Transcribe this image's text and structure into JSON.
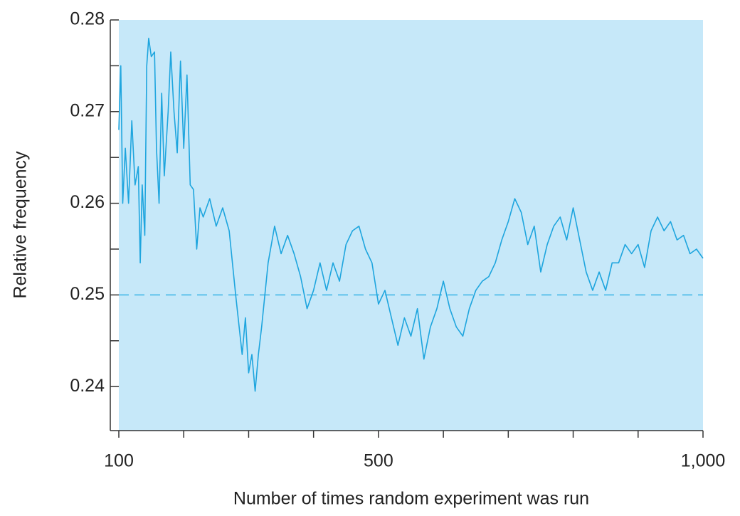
{
  "chart_data": {
    "type": "line",
    "xlabel": "Number of times random experiment was run",
    "ylabel": "Relative frequency",
    "x": [
      100,
      103,
      106,
      110,
      115,
      120,
      125,
      130,
      133,
      136,
      140,
      143,
      146,
      150,
      155,
      158,
      162,
      166,
      170,
      176,
      180,
      185,
      190,
      195,
      200,
      205,
      210,
      215,
      220,
      225,
      230,
      240,
      250,
      260,
      270,
      280,
      290,
      295,
      300,
      305,
      310,
      315,
      320,
      325,
      330,
      340,
      350,
      360,
      370,
      380,
      390,
      400,
      410,
      420,
      430,
      440,
      450,
      460,
      470,
      480,
      490,
      500,
      510,
      520,
      530,
      540,
      550,
      560,
      570,
      580,
      590,
      600,
      610,
      620,
      630,
      640,
      650,
      660,
      670,
      680,
      690,
      700,
      710,
      720,
      730,
      740,
      750,
      760,
      770,
      780,
      790,
      800,
      810,
      820,
      830,
      840,
      850,
      860,
      870,
      880,
      890,
      900,
      910,
      920,
      930,
      940,
      950,
      960,
      970,
      980,
      990,
      1000
    ],
    "series": [
      {
        "color": "#1ea5de",
        "values": [
          0.268,
          0.275,
          0.26,
          0.266,
          0.26,
          0.269,
          0.262,
          0.264,
          0.2535,
          0.262,
          0.2565,
          0.275,
          0.278,
          0.276,
          0.2765,
          0.266,
          0.26,
          0.272,
          0.263,
          0.27,
          0.2765,
          0.27,
          0.2655,
          0.2755,
          0.266,
          0.274,
          0.262,
          0.2615,
          0.255,
          0.2595,
          0.2585,
          0.2605,
          0.2575,
          0.2595,
          0.257,
          0.25,
          0.2435,
          0.2475,
          0.2415,
          0.2435,
          0.2395,
          0.2435,
          0.2465,
          0.25,
          0.2535,
          0.2575,
          0.2545,
          0.2565,
          0.2545,
          0.252,
          0.2485,
          0.2505,
          0.2535,
          0.2505,
          0.2535,
          0.2515,
          0.2555,
          0.257,
          0.2575,
          0.255,
          0.2535,
          0.249,
          0.2505,
          0.2475,
          0.2445,
          0.2475,
          0.2455,
          0.2485,
          0.243,
          0.2465,
          0.2485,
          0.2515,
          0.2485,
          0.2465,
          0.2455,
          0.2485,
          0.2505,
          0.2515,
          0.252,
          0.2535,
          0.256,
          0.258,
          0.2605,
          0.259,
          0.2555,
          0.2575,
          0.2525,
          0.2555,
          0.2575,
          0.2585,
          0.256,
          0.2595,
          0.256,
          0.2525,
          0.2505,
          0.2525,
          0.2505,
          0.2535,
          0.2535,
          0.2555,
          0.2545,
          0.2555,
          0.253,
          0.257,
          0.2585,
          0.257,
          0.258,
          0.256,
          0.2565,
          0.2545,
          0.255,
          0.254
        ]
      }
    ],
    "xlim": [
      100,
      1000
    ],
    "xticks": [
      100,
      500,
      {
        "value": 1000,
        "label": "1,000"
      }
    ],
    "xminorticks": [
      200,
      300,
      400,
      600,
      700,
      800,
      900
    ],
    "ylim": [
      0.2352,
      0.28
    ],
    "yticks": [
      0.24,
      0.25,
      0.26,
      0.27,
      0.28
    ],
    "yminorticks": [
      0.245,
      0.255,
      0.265,
      0.275
    ],
    "reference_line": {
      "value": 0.25,
      "color": "#3ab4e6",
      "dashed": true
    },
    "background": "#c6e8f9"
  }
}
